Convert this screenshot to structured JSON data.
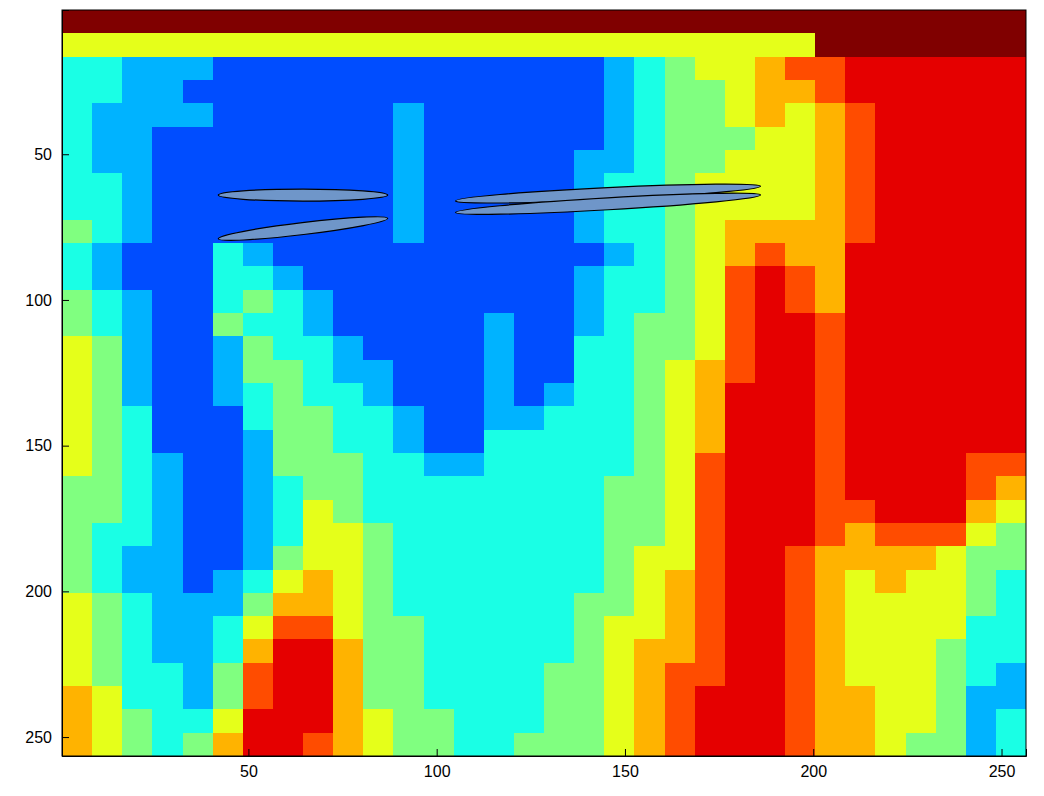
{
  "chart_data": {
    "type": "heatmap",
    "xlim": [
      0.5,
      256.5
    ],
    "ylim": [
      0.5,
      256.5
    ],
    "xticks": [
      50,
      100,
      150,
      200,
      250
    ],
    "yticks": [
      50,
      100,
      150,
      200,
      250
    ],
    "zlim": [
      0,
      10
    ],
    "x_edges": [
      0.5,
      8.5,
      16.5,
      24.5,
      32.5,
      40.5,
      48.5,
      56.5,
      64.5,
      72.5,
      80.5,
      88.5,
      96.5,
      104.5,
      112.5,
      120.5,
      128.5,
      136.5,
      144.5,
      152.5,
      160.5,
      168.5,
      176.5,
      184.5,
      192.5,
      200.5,
      208.5,
      216.5,
      224.5,
      232.5,
      240.5,
      248.5,
      256.5
    ],
    "y_edges": [
      0.5,
      8.5,
      16.5,
      24.5,
      32.5,
      40.5,
      48.5,
      56.5,
      64.5,
      72.5,
      80.5,
      88.5,
      96.5,
      104.5,
      112.5,
      120.5,
      128.5,
      136.5,
      144.5,
      152.5,
      160.5,
      168.5,
      176.5,
      184.5,
      192.5,
      200.5,
      208.5,
      216.5,
      224.5,
      232.5,
      240.5,
      248.5,
      256.5
    ],
    "cells": [
      [
        10,
        10,
        10,
        10,
        10,
        10,
        10,
        10,
        10,
        10,
        10,
        10,
        10,
        10,
        10,
        10,
        10,
        10,
        10,
        10,
        10,
        10,
        10,
        10,
        10,
        10,
        10,
        10,
        10,
        10,
        10,
        10
      ],
      [
        6,
        6,
        6,
        6,
        6,
        6,
        6,
        6,
        6,
        6,
        6,
        6,
        6,
        6,
        6,
        6,
        6,
        6,
        6,
        6,
        6,
        6,
        6,
        6,
        6,
        10,
        10,
        10,
        10,
        10,
        10,
        10
      ],
      [
        4,
        4,
        3,
        3,
        3,
        2,
        2,
        2,
        2,
        2,
        2,
        2,
        2,
        2,
        2,
        2,
        2,
        2,
        3,
        4,
        5,
        6,
        6,
        7,
        8,
        8,
        9,
        9,
        9,
        9,
        9,
        9
      ],
      [
        4,
        4,
        3,
        3,
        2,
        2,
        2,
        2,
        2,
        2,
        2,
        2,
        2,
        2,
        2,
        2,
        2,
        2,
        3,
        4,
        5,
        5,
        6,
        7,
        7,
        8,
        9,
        9,
        9,
        9,
        9,
        9
      ],
      [
        4,
        3,
        3,
        3,
        3,
        2,
        2,
        2,
        2,
        2,
        2,
        3,
        2,
        2,
        2,
        2,
        2,
        2,
        3,
        4,
        5,
        5,
        6,
        7,
        6,
        7,
        8,
        9,
        9,
        9,
        9,
        9
      ],
      [
        4,
        3,
        3,
        2,
        2,
        2,
        2,
        2,
        2,
        2,
        2,
        3,
        2,
        2,
        2,
        2,
        2,
        2,
        3,
        4,
        5,
        5,
        5,
        6,
        6,
        7,
        8,
        9,
        9,
        9,
        9,
        9
      ],
      [
        4,
        3,
        3,
        2,
        2,
        2,
        2,
        2,
        2,
        2,
        2,
        3,
        2,
        2,
        2,
        2,
        2,
        3,
        3,
        4,
        5,
        5,
        6,
        6,
        6,
        7,
        8,
        9,
        9,
        9,
        9,
        9
      ],
      [
        4,
        4,
        3,
        2,
        2,
        2,
        2,
        2,
        2,
        2,
        2,
        3,
        2,
        2,
        2,
        2,
        2,
        3,
        4,
        4,
        5,
        6,
        6,
        6,
        6,
        7,
        8,
        9,
        9,
        9,
        9,
        9
      ],
      [
        4,
        4,
        3,
        2,
        2,
        2,
        2,
        2,
        2,
        2,
        2,
        3,
        2,
        2,
        2,
        2,
        2,
        3,
        4,
        4,
        5,
        6,
        6,
        6,
        6,
        7,
        8,
        9,
        9,
        9,
        9,
        9
      ],
      [
        5,
        4,
        3,
        2,
        2,
        2,
        2,
        2,
        2,
        2,
        2,
        3,
        2,
        2,
        2,
        2,
        2,
        3,
        4,
        4,
        5,
        6,
        7,
        7,
        7,
        7,
        8,
        9,
        9,
        9,
        9,
        9
      ],
      [
        4,
        3,
        2,
        2,
        2,
        4,
        3,
        2,
        2,
        2,
        2,
        2,
        2,
        2,
        2,
        2,
        2,
        2,
        3,
        4,
        5,
        6,
        7,
        8,
        7,
        7,
        9,
        9,
        9,
        9,
        9,
        9
      ],
      [
        4,
        3,
        2,
        2,
        2,
        4,
        4,
        3,
        2,
        2,
        2,
        2,
        2,
        2,
        2,
        2,
        2,
        3,
        4,
        4,
        5,
        6,
        8,
        9,
        8,
        7,
        9,
        9,
        9,
        9,
        9,
        9
      ],
      [
        5,
        4,
        3,
        2,
        2,
        4,
        5,
        4,
        3,
        2,
        2,
        2,
        2,
        2,
        2,
        2,
        2,
        3,
        4,
        4,
        5,
        6,
        8,
        9,
        8,
        7,
        9,
        9,
        9,
        9,
        9,
        9
      ],
      [
        5,
        4,
        3,
        2,
        2,
        5,
        4,
        4,
        3,
        2,
        2,
        2,
        2,
        2,
        3,
        2,
        2,
        3,
        4,
        5,
        5,
        6,
        8,
        9,
        9,
        8,
        9,
        9,
        9,
        9,
        9,
        9
      ],
      [
        6,
        5,
        3,
        2,
        2,
        3,
        5,
        4,
        4,
        3,
        2,
        2,
        2,
        2,
        3,
        2,
        2,
        4,
        4,
        5,
        5,
        6,
        8,
        9,
        9,
        8,
        9,
        9,
        9,
        9,
        9,
        9
      ],
      [
        6,
        5,
        3,
        2,
        2,
        3,
        5,
        5,
        4,
        3,
        3,
        2,
        2,
        2,
        3,
        2,
        2,
        4,
        4,
        5,
        6,
        7,
        8,
        9,
        9,
        8,
        9,
        9,
        9,
        9,
        9,
        9
      ],
      [
        6,
        5,
        3,
        2,
        2,
        3,
        4,
        5,
        4,
        4,
        3,
        2,
        2,
        2,
        3,
        2,
        3,
        4,
        4,
        5,
        6,
        7,
        9,
        9,
        9,
        8,
        9,
        9,
        9,
        9,
        9,
        9
      ],
      [
        6,
        5,
        4,
        2,
        2,
        2,
        4,
        5,
        5,
        4,
        4,
        3,
        2,
        2,
        3,
        3,
        4,
        4,
        4,
        5,
        6,
        7,
        9,
        9,
        9,
        8,
        9,
        9,
        9,
        9,
        9,
        9
      ],
      [
        6,
        5,
        4,
        2,
        2,
        2,
        3,
        5,
        5,
        4,
        4,
        3,
        2,
        2,
        4,
        4,
        4,
        4,
        4,
        5,
        6,
        7,
        9,
        9,
        9,
        8,
        9,
        9,
        9,
        9,
        9,
        9
      ],
      [
        6,
        5,
        4,
        3,
        2,
        2,
        3,
        5,
        5,
        5,
        4,
        4,
        3,
        3,
        4,
        4,
        4,
        4,
        4,
        5,
        6,
        8,
        9,
        9,
        9,
        8,
        9,
        9,
        9,
        9,
        8,
        8
      ],
      [
        5,
        5,
        4,
        3,
        2,
        2,
        3,
        4,
        5,
        5,
        4,
        4,
        4,
        4,
        4,
        4,
        4,
        4,
        5,
        5,
        6,
        8,
        9,
        9,
        9,
        8,
        9,
        9,
        9,
        9,
        8,
        7
      ],
      [
        5,
        5,
        4,
        3,
        2,
        2,
        3,
        4,
        6,
        5,
        4,
        4,
        4,
        4,
        4,
        4,
        4,
        4,
        5,
        5,
        6,
        8,
        9,
        9,
        9,
        8,
        8,
        9,
        9,
        9,
        7,
        6
      ],
      [
        5,
        4,
        4,
        3,
        2,
        2,
        3,
        4,
        6,
        6,
        5,
        4,
        4,
        4,
        4,
        4,
        4,
        4,
        5,
        5,
        6,
        8,
        9,
        9,
        9,
        8,
        7,
        8,
        8,
        8,
        6,
        5
      ],
      [
        5,
        4,
        3,
        3,
        2,
        2,
        3,
        5,
        6,
        6,
        5,
        4,
        4,
        4,
        4,
        4,
        4,
        4,
        5,
        6,
        6,
        8,
        9,
        9,
        8,
        7,
        7,
        7,
        7,
        6,
        5,
        5
      ],
      [
        5,
        4,
        3,
        3,
        2,
        3,
        4,
        6,
        7,
        6,
        5,
        4,
        4,
        4,
        4,
        4,
        4,
        4,
        5,
        6,
        7,
        8,
        9,
        9,
        8,
        7,
        6,
        7,
        6,
        6,
        5,
        4
      ],
      [
        6,
        5,
        4,
        3,
        3,
        3,
        5,
        7,
        7,
        6,
        5,
        4,
        4,
        4,
        4,
        4,
        4,
        5,
        5,
        6,
        7,
        8,
        9,
        9,
        8,
        7,
        6,
        6,
        6,
        6,
        5,
        4
      ],
      [
        6,
        5,
        4,
        3,
        3,
        4,
        6,
        8,
        8,
        6,
        5,
        5,
        4,
        4,
        4,
        4,
        4,
        5,
        6,
        6,
        7,
        8,
        9,
        9,
        8,
        7,
        6,
        6,
        6,
        6,
        4,
        4
      ],
      [
        6,
        5,
        4,
        3,
        3,
        4,
        7,
        9,
        9,
        7,
        5,
        5,
        4,
        4,
        4,
        4,
        4,
        5,
        6,
        7,
        7,
        8,
        9,
        9,
        8,
        7,
        6,
        6,
        6,
        5,
        4,
        4
      ],
      [
        6,
        5,
        4,
        4,
        3,
        5,
        8,
        9,
        9,
        7,
        5,
        5,
        4,
        4,
        4,
        4,
        5,
        5,
        6,
        7,
        8,
        8,
        9,
        9,
        8,
        7,
        6,
        6,
        6,
        5,
        4,
        3
      ],
      [
        7,
        6,
        4,
        4,
        3,
        5,
        8,
        9,
        9,
        7,
        5,
        5,
        4,
        4,
        4,
        4,
        5,
        5,
        6,
        7,
        8,
        9,
        9,
        9,
        8,
        7,
        7,
        6,
        6,
        5,
        3,
        3
      ],
      [
        7,
        6,
        5,
        4,
        4,
        6,
        9,
        9,
        9,
        7,
        6,
        5,
        5,
        4,
        4,
        4,
        5,
        5,
        6,
        7,
        8,
        9,
        9,
        9,
        8,
        7,
        7,
        6,
        6,
        5,
        3,
        4
      ],
      [
        7,
        6,
        5,
        4,
        5,
        7,
        9,
        9,
        8,
        7,
        6,
        5,
        5,
        4,
        4,
        5,
        5,
        5,
        6,
        7,
        8,
        9,
        9,
        9,
        8,
        7,
        7,
        6,
        5,
        5,
        3,
        4
      ]
    ],
    "ellipses": [
      {
        "x": [
          42,
          87
        ],
        "y": [
          64,
          64
        ]
      },
      {
        "x": [
          42,
          87
        ],
        "y": [
          79,
          72
        ]
      },
      {
        "x": [
          105,
          186
        ],
        "y": [
          66,
          61
        ]
      },
      {
        "x": [
          105,
          186
        ],
        "y": [
          70,
          64
        ]
      }
    ]
  }
}
